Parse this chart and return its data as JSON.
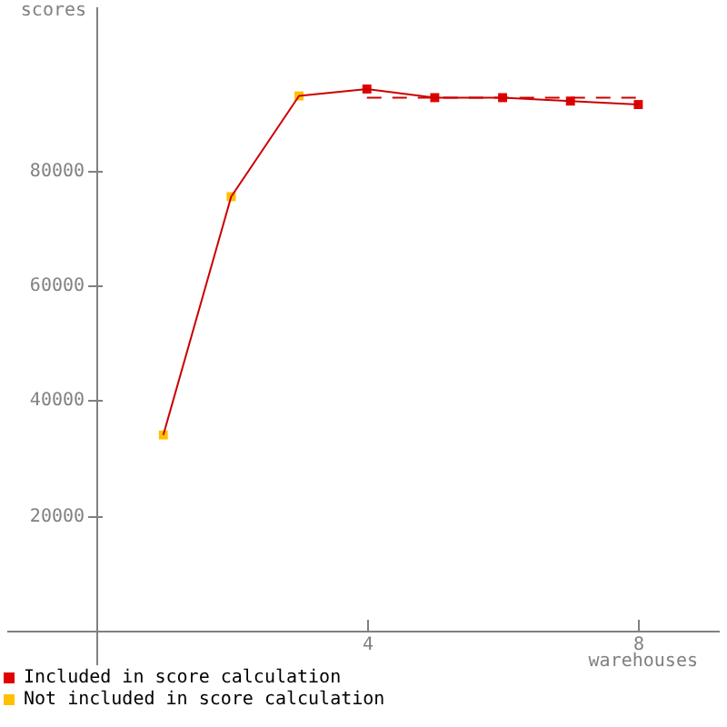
{
  "chart_data": {
    "type": "line",
    "xlabel": "warehouses",
    "ylabel": "scores",
    "x": [
      1,
      2,
      3,
      4,
      5,
      6,
      7,
      8
    ],
    "xlim": [
      -1.3,
      9.2
    ],
    "ylim": [
      -6000,
      108300
    ],
    "xticks": [
      4,
      8
    ],
    "yticks": [
      20000,
      40000,
      60000,
      80000
    ],
    "grid": false,
    "legend": "bottom left",
    "marker": "square",
    "series": [
      {
        "color": "#cc0000",
        "marker": "none",
        "values": [
          34000,
          75400,
          92900,
          94100,
          92600,
          92600,
          92000,
          91400
        ]
      },
      {
        "type": "scatter",
        "name": "Included in score calculation",
        "color": "#e00000",
        "values": [
          null,
          null,
          null,
          94100,
          92600,
          92600,
          92000,
          91400
        ]
      },
      {
        "type": "scatter",
        "name": "Not included in score calculation",
        "color": "#ffc000",
        "values": [
          34000,
          75400,
          92900,
          null,
          null,
          null,
          null,
          null
        ]
      },
      {
        "type": "line",
        "color": "#cc0000",
        "marker": "none",
        "line_style": "dashed",
        "x": [
          4,
          8
        ],
        "values": [
          92600,
          92600
        ]
      }
    ]
  }
}
